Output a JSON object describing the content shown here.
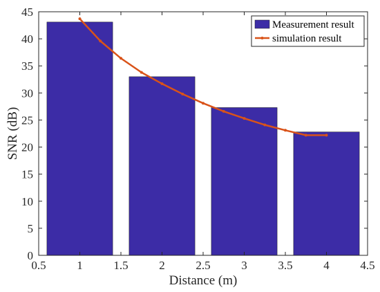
{
  "chart_data": {
    "type": "bar",
    "xlabel": "Distance (m)",
    "ylabel": "SNR (dB)",
    "xlim": [
      0.5,
      4.5
    ],
    "ylim": [
      0,
      45
    ],
    "xticks": [
      "0.5",
      "1",
      "1.5",
      "2",
      "2.5",
      "3",
      "3.5",
      "4",
      "4.5"
    ],
    "yticks": [
      "0",
      "5",
      "10",
      "15",
      "20",
      "25",
      "30",
      "35",
      "40",
      "45"
    ],
    "grid": false,
    "legend_position": "top-right",
    "series": [
      {
        "name": "Measurement result",
        "type": "bar",
        "color": "#3C2CA6",
        "x": [
          1,
          2,
          3,
          4
        ],
        "values": [
          43.1,
          33.0,
          27.3,
          22.8
        ]
      },
      {
        "name": "simulation result",
        "type": "line",
        "color": "#D95319",
        "x": [
          1,
          1.25,
          1.5,
          1.75,
          2,
          2.25,
          2.5,
          2.75,
          3,
          3.25,
          3.5,
          3.75,
          4
        ],
        "values": [
          43.7,
          39.6,
          36.4,
          33.8,
          31.7,
          29.8,
          28.1,
          26.6,
          25.3,
          24.1,
          23.1,
          22.2,
          22.2
        ]
      }
    ]
  }
}
